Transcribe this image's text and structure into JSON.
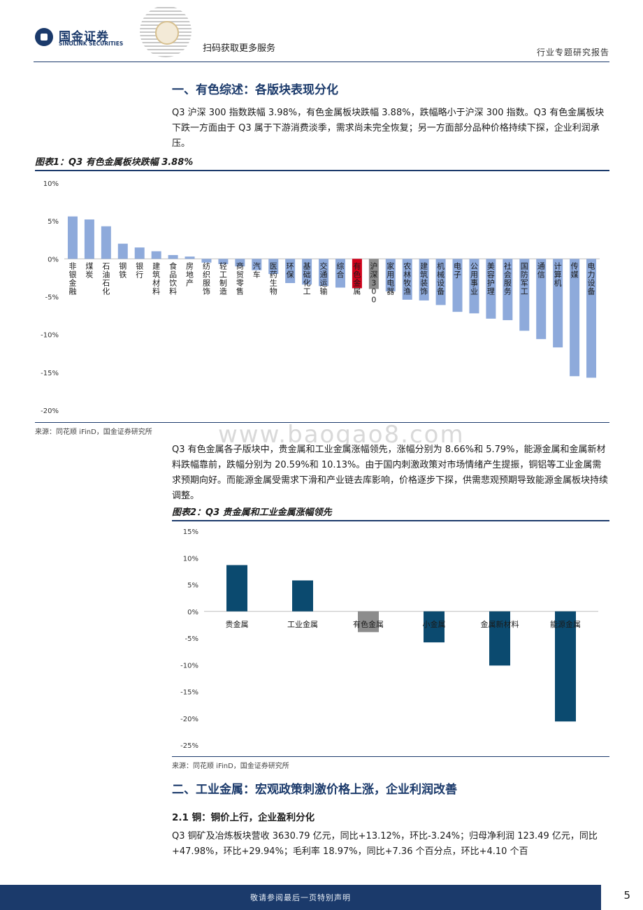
{
  "header": {
    "company_cn": "国金证券",
    "company_en": "SINOLINK SECURITIES",
    "qr_label": "扫码获取更多服务",
    "doc_type": "行业专题研究报告"
  },
  "section1": {
    "title": "一、有色综述：各版块表现分化",
    "paragraph": "Q3 沪深 300 指数跌幅 3.98%，有色金属板块跌幅 3.88%，跌幅略小于沪深 300 指数。Q3 有色金属板块下跌一方面由于 Q3 属于下游消费淡季，需求尚未完全恢复；另一方面部分品种价格持续下探，企业利润承压。",
    "paragraph2": "Q3 有色金属各子版块中，贵金属和工业金属涨幅领先，涨幅分别为 8.66%和 5.79%，能源金属和金属新材料跌幅靠前，跌幅分别为 20.59%和 10.13%。由于国内刺激政策对市场情绪产生提振，铜铝等工业金属需求预期向好。而能源金属受需求下滑和产业链去库影响，价格逐步下探，供需悲观预期导致能源金属板块持续调整。"
  },
  "figure1": {
    "title": "图表1：Q3 有色金属板块跌幅 3.88%",
    "source": "来源：同花顺 iFinD，国金证券研究所"
  },
  "figure2": {
    "title": "图表2：Q3 贵金属和工业金属涨幅领先",
    "source": "来源：同花顺 iFinD，国金证券研究所"
  },
  "section2": {
    "title": "二、工业金属：宏观政策刺激价格上涨，企业利润改善",
    "subtitle": "2.1 铜：铜价上行，企业盈利分化",
    "paragraph": "Q3 铜矿及冶炼板块营收 3630.79 亿元，同比+13.12%，环比-3.24%；归母净利润 123.49 亿元，同比+47.98%，环比+29.94%；毛利率 18.97%，同比+7.36 个百分点，环比+4.10 个百"
  },
  "footer": {
    "disclaimer": "敬请参阅最后一页特别声明",
    "page": "5"
  },
  "watermark": "www.baogao8.com",
  "colors": {
    "brand": "#1b3a6b",
    "bar_light": "#8eaadb",
    "bar_highlight": "#d0021b",
    "bar_index": "#8c8c8c",
    "bar_dark": "#0b4a6f",
    "bar_dark_muted": "#8c8c8c"
  },
  "chart_data": [
    {
      "type": "bar",
      "title": "图表1：Q3 有色金属板块跌幅 3.88%",
      "ylim": [
        -20,
        10
      ],
      "yticks": [
        10,
        5,
        0,
        -5,
        -10,
        -15,
        -20
      ],
      "tick_suffix": "%",
      "grid": false,
      "categories": [
        "非银金融",
        "煤炭",
        "石油石化",
        "钢铁",
        "银行",
        "建筑材料",
        "食品饮料",
        "房地产",
        "纺织服饰",
        "轻工制造",
        "商贸零售",
        "汽车",
        "医药生物",
        "环保",
        "基础化工",
        "交通运输",
        "综合",
        "有色金属",
        "沪深300",
        "家用电器",
        "农林牧渔",
        "建筑装饰",
        "机械设备",
        "电子",
        "公用事业",
        "美容护理",
        "社会服务",
        "国防军工",
        "通信",
        "计算机",
        "传媒",
        "电力设备"
      ],
      "values": [
        5.6,
        5.2,
        4.3,
        2.0,
        1.5,
        1.0,
        0.5,
        0.3,
        -0.5,
        -0.7,
        -1.0,
        -1.5,
        -2.0,
        -3.2,
        -3.4,
        -3.6,
        -3.8,
        -3.88,
        -3.98,
        -4.3,
        -5.4,
        -5.5,
        -6.1,
        -7.0,
        -7.2,
        -7.9,
        -8.1,
        -9.5,
        -10.6,
        -11.7,
        -15.5,
        -15.7
      ],
      "highlight": {
        "有色金属": "highlight",
        "沪深300": "index"
      }
    },
    {
      "type": "bar",
      "title": "图表2：Q3 贵金属和工业金属涨幅领先",
      "ylim": [
        -25,
        15
      ],
      "yticks": [
        15,
        10,
        5,
        0,
        -5,
        -10,
        -15,
        -20,
        -25
      ],
      "tick_suffix": "%",
      "grid": false,
      "categories": [
        "贵金属",
        "工业金属",
        "有色金属",
        "小金属",
        "金属新材料",
        "能源金属"
      ],
      "values": [
        8.66,
        5.79,
        -3.88,
        -5.8,
        -10.13,
        -20.59
      ],
      "muted": [
        "有色金属"
      ]
    }
  ]
}
